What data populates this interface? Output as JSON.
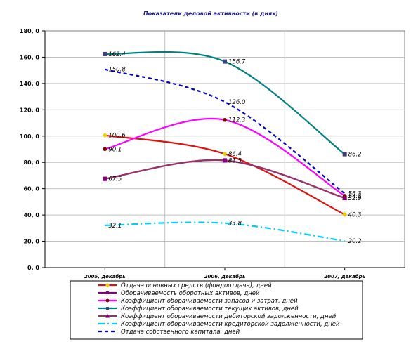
{
  "chart_data": {
    "type": "line",
    "title": "Показатели деловой активности (в днях)",
    "xlabel": "",
    "ylabel": "",
    "categories": [
      "2005, декабрь",
      "2006, декабрь",
      "2007, декабрь"
    ],
    "ylim": [
      0,
      180
    ],
    "yticks": [
      "0, 0",
      "20, 0",
      "40, 0",
      "60, 0",
      "80, 0",
      "100, 0",
      "120, 0",
      "140, 0",
      "160, 0",
      "180, 0"
    ],
    "grid": true,
    "legend_position": "bottom",
    "series": [
      {
        "name": "Отдача основных средств (фондоотдача), дней",
        "values": [
          100.6,
          86.4,
          40.3
        ],
        "labels": [
          "100.6",
          "86.4",
          "40.3"
        ],
        "color": "#e01010",
        "dash": "solid",
        "marker": "diamond",
        "marker_color": "#e8d000"
      },
      {
        "name": "Оборачиваемость оборотных активов, дней",
        "values": [
          67.5,
          81.5,
          52.9
        ],
        "labels": [
          "67.5",
          "81.5",
          "52.9"
        ],
        "color": "#800080",
        "dash": "solid",
        "marker": "square",
        "marker_color": "#800080"
      },
      {
        "name": "Коэффициент оборачиваемости запасов и затрат, дней",
        "values": [
          90.1,
          112.3,
          54.5
        ],
        "labels": [
          "90.1",
          "112.3",
          "54.5"
        ],
        "color": "#ff00ff",
        "dash": "solid",
        "marker": "circle",
        "marker_color": "#800000"
      },
      {
        "name": "Коэффициент оборачиваемости текущих активов, дней",
        "values": [
          162.4,
          156.7,
          86.2
        ],
        "labels": [
          "162.4",
          "156.7",
          "86.2"
        ],
        "color": "#008080",
        "dash": "solid",
        "marker": "square",
        "marker_color": "#404080"
      },
      {
        "name": "Коэффициент оборачиваемости дебиторской задолженности, дней",
        "values": [
          67.5,
          81.5,
          52.9
        ],
        "labels": [
          "",
          "",
          ""
        ],
        "color": "#993366",
        "dash": "solid",
        "marker": "triangle",
        "marker_color": "#800080"
      },
      {
        "name": "Коэффициент оборачиваемости кредиторской задолженности, дней",
        "values": [
          32.1,
          33.8,
          20.2
        ],
        "labels": [
          "32.1",
          "33.8",
          "20.2"
        ],
        "color": "#00ccff",
        "dash": "dashdot",
        "marker": "none",
        "marker_color": "#00ccff"
      },
      {
        "name": "Отдача собственного капитала, дней",
        "values": [
          150.8,
          126.0,
          56.3
        ],
        "labels": [
          "150.8",
          "126.0",
          "56.3"
        ],
        "color": "#0000cc",
        "dash": "dash",
        "marker": "none",
        "marker_color": "#0000cc"
      }
    ]
  }
}
